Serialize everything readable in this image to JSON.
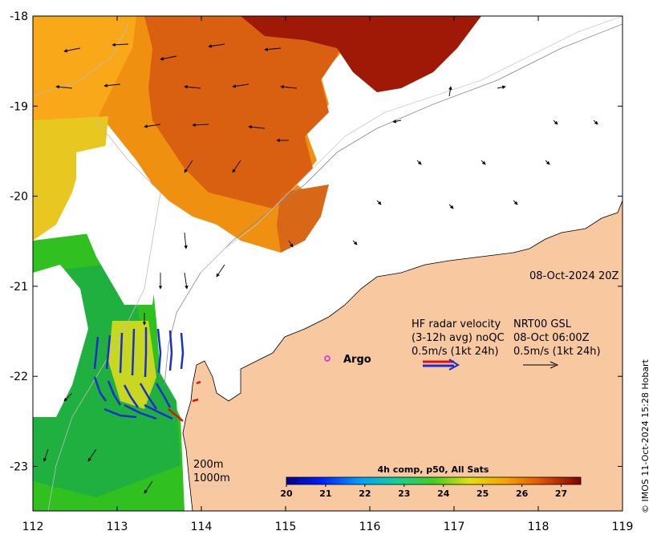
{
  "map": {
    "lon_ticks": [
      "112",
      "113",
      "114",
      "115",
      "116",
      "117",
      "118",
      "119"
    ],
    "lat_ticks": [
      "-18",
      "-19",
      "-20",
      "-21",
      "-22",
      "-23"
    ],
    "timestamp": "08-Oct-2024 20Z",
    "legend": {
      "line1_left": "HF radar velocity",
      "line1_right": "NRT00 GSL",
      "line2_left": "(3-12h avg) noQC",
      "line2_right": "08-Oct 06:00Z",
      "line3_left": "0.5m/s (1kt 24h)",
      "line3_right": "0.5m/s (1kt 24h)"
    },
    "argo_label": "Argo",
    "isobaths": [
      "200m",
      "1000m"
    ],
    "colorbar": {
      "title": "4h comp, p50, All Sats",
      "ticks": [
        "20",
        "21",
        "22",
        "23",
        "24",
        "25",
        "26",
        "27"
      ],
      "range": [
        20,
        27.5
      ]
    },
    "credit": "© IMOS 11-Oct-2024 15:28 Hobart",
    "colors": {
      "land": "#f8c8a0",
      "radar_blue": "#1a2fd0",
      "radar_red": "#e01010",
      "argo": "#e020e0"
    }
  }
}
